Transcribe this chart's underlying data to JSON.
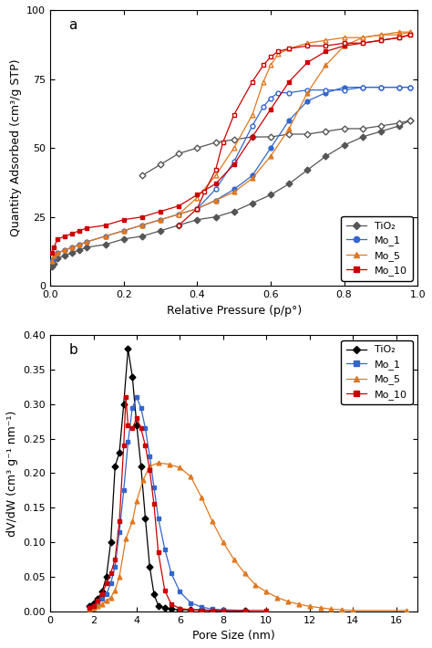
{
  "panel_a": {
    "title": "a",
    "xlabel": "Relative Pressure (p/p°)",
    "ylabel": "Quantity Adsorbed (cm³/g STP)",
    "xlim": [
      0.0,
      1.0
    ],
    "ylim": [
      0,
      100
    ],
    "yticks": [
      0,
      25,
      50,
      75,
      100
    ],
    "xticks": [
      0.0,
      0.2,
      0.4,
      0.6,
      0.8,
      1.0
    ],
    "series": {
      "TiO2": {
        "color": "#555555",
        "adsorption": {
          "x": [
            0.005,
            0.01,
            0.02,
            0.04,
            0.06,
            0.08,
            0.1,
            0.15,
            0.2,
            0.25,
            0.3,
            0.35,
            0.4,
            0.45,
            0.5,
            0.55,
            0.6,
            0.65,
            0.7,
            0.75,
            0.8,
            0.85,
            0.9,
            0.95,
            0.98
          ],
          "y": [
            7,
            8,
            10,
            11,
            12,
            13,
            14,
            15,
            17,
            18,
            20,
            22,
            24,
            25,
            27,
            30,
            33,
            37,
            42,
            47,
            51,
            54,
            56,
            58,
            60
          ]
        },
        "desorption": {
          "x": [
            0.98,
            0.95,
            0.9,
            0.85,
            0.8,
            0.75,
            0.7,
            0.65,
            0.6,
            0.55,
            0.5,
            0.45,
            0.4,
            0.35,
            0.3,
            0.25
          ],
          "y": [
            60,
            59,
            58,
            57,
            57,
            56,
            55,
            55,
            54,
            54,
            53,
            52,
            50,
            48,
            44,
            40
          ]
        },
        "marker_ads": "D",
        "marker_des": "D"
      },
      "Mo_1": {
        "color": "#3366cc",
        "adsorption": {
          "x": [
            0.005,
            0.01,
            0.02,
            0.04,
            0.06,
            0.08,
            0.1,
            0.15,
            0.2,
            0.25,
            0.3,
            0.35,
            0.4,
            0.45,
            0.5,
            0.55,
            0.6,
            0.65,
            0.7,
            0.75,
            0.8,
            0.85,
            0.9,
            0.95,
            0.98
          ],
          "y": [
            9,
            10,
            12,
            13,
            14,
            15,
            16,
            18,
            20,
            22,
            24,
            26,
            28,
            31,
            35,
            40,
            50,
            60,
            67,
            70,
            72,
            72,
            72,
            72,
            72
          ]
        },
        "desorption": {
          "x": [
            0.98,
            0.95,
            0.9,
            0.85,
            0.8,
            0.75,
            0.7,
            0.65,
            0.62,
            0.6,
            0.58,
            0.55,
            0.5,
            0.45,
            0.4
          ],
          "y": [
            72,
            72,
            72,
            72,
            71,
            71,
            71,
            70,
            70,
            68,
            65,
            58,
            45,
            35,
            28
          ]
        },
        "marker_ads": "o",
        "marker_des": "o"
      },
      "Mo_5": {
        "color": "#e07820",
        "adsorption": {
          "x": [
            0.005,
            0.01,
            0.02,
            0.04,
            0.06,
            0.08,
            0.1,
            0.15,
            0.2,
            0.25,
            0.3,
            0.35,
            0.4,
            0.45,
            0.5,
            0.55,
            0.6,
            0.65,
            0.7,
            0.75,
            0.8,
            0.85,
            0.9,
            0.95,
            0.98
          ],
          "y": [
            9,
            11,
            12,
            13,
            14,
            15,
            16,
            18,
            20,
            22,
            24,
            26,
            28,
            31,
            34,
            39,
            47,
            57,
            70,
            80,
            87,
            90,
            91,
            92,
            92
          ]
        },
        "desorption": {
          "x": [
            0.98,
            0.95,
            0.9,
            0.85,
            0.8,
            0.75,
            0.7,
            0.65,
            0.62,
            0.6,
            0.58,
            0.55,
            0.5,
            0.45,
            0.4,
            0.35
          ],
          "y": [
            92,
            91,
            91,
            90,
            90,
            89,
            88,
            86,
            84,
            80,
            74,
            62,
            50,
            40,
            32,
            26
          ]
        },
        "marker_ads": "^",
        "marker_des": "^"
      },
      "Mo_10": {
        "color": "#cc0000",
        "adsorption": {
          "x": [
            0.005,
            0.01,
            0.02,
            0.04,
            0.06,
            0.08,
            0.1,
            0.15,
            0.2,
            0.25,
            0.3,
            0.35,
            0.4,
            0.45,
            0.5,
            0.55,
            0.6,
            0.65,
            0.7,
            0.75,
            0.8,
            0.85,
            0.9,
            0.95,
            0.98
          ],
          "y": [
            12,
            14,
            17,
            18,
            19,
            20,
            21,
            22,
            24,
            25,
            27,
            29,
            33,
            37,
            44,
            54,
            64,
            74,
            81,
            85,
            87,
            88,
            89,
            90,
            91
          ]
        },
        "desorption": {
          "x": [
            0.98,
            0.95,
            0.9,
            0.85,
            0.8,
            0.75,
            0.7,
            0.65,
            0.62,
            0.6,
            0.58,
            0.55,
            0.5,
            0.47,
            0.45,
            0.42,
            0.4,
            0.35
          ],
          "y": [
            91,
            90,
            89,
            88,
            88,
            87,
            87,
            86,
            85,
            83,
            80,
            74,
            62,
            52,
            42,
            34,
            28,
            22
          ]
        },
        "marker_ads": "s",
        "marker_des": "s"
      }
    },
    "legend_labels": [
      "TiO₂",
      "Mo_1",
      "Mo_5",
      "Mo_10"
    ],
    "legend_colors": [
      "#555555",
      "#3366cc",
      "#e07820",
      "#cc0000"
    ],
    "legend_markers": [
      "D",
      "o",
      "^",
      "s"
    ]
  },
  "panel_b": {
    "title": "b",
    "xlabel": "Pore Size (nm)",
    "ylabel": "dV/dW (cm³ g⁻¹ nm⁻¹)",
    "xlim": [
      0,
      17
    ],
    "ylim": [
      0.0,
      0.4
    ],
    "yticks": [
      0.0,
      0.05,
      0.1,
      0.15,
      0.2,
      0.25,
      0.3,
      0.35,
      0.4
    ],
    "xticks": [
      0,
      2,
      4,
      6,
      8,
      10,
      12,
      14,
      16
    ],
    "series": {
      "TiO2": {
        "color": "#000000",
        "x": [
          1.8,
          2.0,
          2.2,
          2.4,
          2.6,
          2.8,
          3.0,
          3.2,
          3.4,
          3.6,
          3.8,
          4.0,
          4.2,
          4.4,
          4.6,
          4.8,
          5.0,
          5.3,
          5.6,
          6.0,
          6.5,
          7.0,
          7.5,
          8.0,
          9.0
        ],
        "y": [
          0.008,
          0.012,
          0.018,
          0.028,
          0.05,
          0.1,
          0.21,
          0.23,
          0.3,
          0.38,
          0.34,
          0.27,
          0.21,
          0.135,
          0.065,
          0.025,
          0.008,
          0.005,
          0.003,
          0.002,
          0.002,
          0.002,
          0.001,
          0.001,
          0.001
        ],
        "marker": "D"
      },
      "Mo_1": {
        "color": "#3366cc",
        "x": [
          1.8,
          2.0,
          2.2,
          2.4,
          2.6,
          2.8,
          3.0,
          3.2,
          3.4,
          3.6,
          3.8,
          4.0,
          4.2,
          4.4,
          4.6,
          4.8,
          5.0,
          5.3,
          5.6,
          6.0,
          6.5,
          7.0,
          7.5,
          8.0,
          9.0
        ],
        "y": [
          0.005,
          0.008,
          0.012,
          0.018,
          0.025,
          0.04,
          0.065,
          0.115,
          0.175,
          0.245,
          0.295,
          0.31,
          0.295,
          0.265,
          0.225,
          0.18,
          0.135,
          0.09,
          0.055,
          0.028,
          0.012,
          0.006,
          0.003,
          0.002,
          0.001
        ],
        "marker": "s"
      },
      "Mo_5": {
        "color": "#e07820",
        "x": [
          1.8,
          2.0,
          2.2,
          2.4,
          2.6,
          2.8,
          3.0,
          3.2,
          3.5,
          3.8,
          4.0,
          4.3,
          4.6,
          5.0,
          5.5,
          6.0,
          6.5,
          7.0,
          7.5,
          8.0,
          8.5,
          9.0,
          9.5,
          10.0,
          10.5,
          11.0,
          11.5,
          12.0,
          12.5,
          13.0,
          13.5,
          14.0,
          16.5
        ],
        "y": [
          0.003,
          0.005,
          0.008,
          0.01,
          0.015,
          0.02,
          0.03,
          0.05,
          0.105,
          0.13,
          0.16,
          0.19,
          0.21,
          0.215,
          0.213,
          0.208,
          0.195,
          0.165,
          0.13,
          0.1,
          0.075,
          0.055,
          0.038,
          0.028,
          0.02,
          0.014,
          0.01,
          0.007,
          0.005,
          0.003,
          0.002,
          0.001,
          0.001
        ],
        "marker": "^"
      },
      "Mo_10": {
        "color": "#cc0000",
        "x": [
          1.8,
          2.0,
          2.2,
          2.4,
          2.6,
          2.8,
          3.0,
          3.2,
          3.4,
          3.5,
          3.6,
          3.8,
          4.0,
          4.2,
          4.4,
          4.6,
          4.8,
          5.0,
          5.3,
          5.6,
          6.0,
          6.5,
          7.0,
          7.5,
          8.0,
          9.0,
          10.0
        ],
        "y": [
          0.005,
          0.008,
          0.015,
          0.025,
          0.04,
          0.055,
          0.075,
          0.13,
          0.24,
          0.31,
          0.27,
          0.265,
          0.28,
          0.265,
          0.24,
          0.205,
          0.155,
          0.085,
          0.03,
          0.01,
          0.004,
          0.002,
          0.001,
          0.001,
          0.001,
          0.001,
          0.001
        ],
        "marker": "s"
      }
    },
    "legend_labels": [
      "TiO₂",
      "Mo_1",
      "Mo_5",
      "Mo_10"
    ],
    "legend_colors": [
      "#000000",
      "#3366cc",
      "#e07820",
      "#cc0000"
    ],
    "legend_markers": [
      "D",
      "s",
      "^",
      "s"
    ]
  }
}
